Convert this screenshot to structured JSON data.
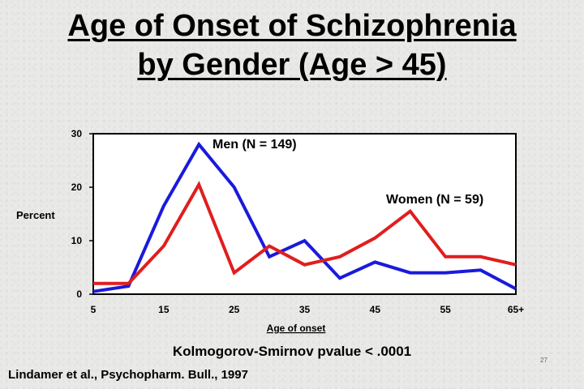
{
  "slide": {
    "title_line1": "Age of Onset of Schizophrenia",
    "title_line2": "by Gender  (Age > 45)",
    "pvalue_text": "Kolmogorov-Smirnov pvalue < .0001",
    "citation": "Lindamer et al., Psychopharm. Bull., 1997",
    "slide_number": "27"
  },
  "chart_data": {
    "type": "line",
    "title": "",
    "xlabel": "Age of onset",
    "ylabel": "Percent",
    "x": [
      5,
      10,
      15,
      20,
      25,
      30,
      35,
      40,
      45,
      50,
      55,
      60,
      65
    ],
    "x_tick_values": [
      5,
      15,
      25,
      35,
      45,
      55,
      65
    ],
    "x_tick_labels": [
      "5",
      "15",
      "25",
      "35",
      "45",
      "55",
      "65+"
    ],
    "xlim": [
      5,
      65
    ],
    "ylim": [
      0,
      30
    ],
    "y_ticks": [
      0,
      10,
      20,
      30
    ],
    "grid": false,
    "series": [
      {
        "name": "Men (N = 149)",
        "color": "#1a1adc",
        "values": [
          0.5,
          1.5,
          16.5,
          28,
          20,
          7,
          10,
          3,
          6,
          4,
          4,
          4.5,
          1
        ]
      },
      {
        "name": "Women (N = 59)",
        "color": "#e01e1e",
        "values": [
          2,
          2,
          9,
          20.5,
          4,
          9,
          5.5,
          7,
          10.5,
          15.5,
          7,
          7,
          5.5
        ]
      }
    ]
  }
}
